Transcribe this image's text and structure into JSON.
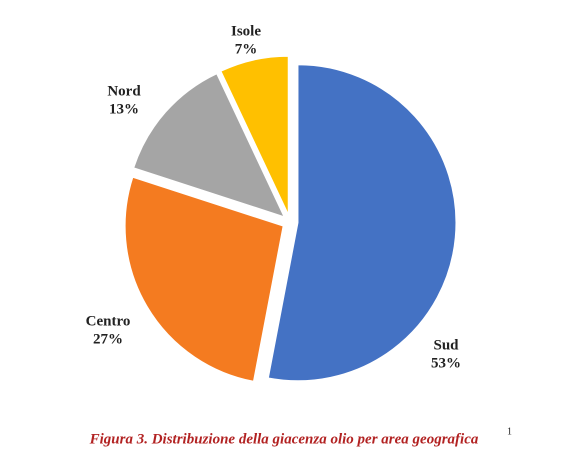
{
  "chart_data": {
    "type": "pie",
    "caption": "Figura 3. Distribuzione della giacenza olio per area geografica",
    "caption_note": "1",
    "categories": [
      "Sud",
      "Centro",
      "Nord",
      "Isole"
    ],
    "values": [
      53,
      27,
      13,
      7
    ],
    "value_labels": [
      "53%",
      "27%",
      "13%",
      "7%"
    ],
    "colors": [
      "#4472c4",
      "#f47b20",
      "#a5a5a5",
      "#ffc000"
    ]
  }
}
